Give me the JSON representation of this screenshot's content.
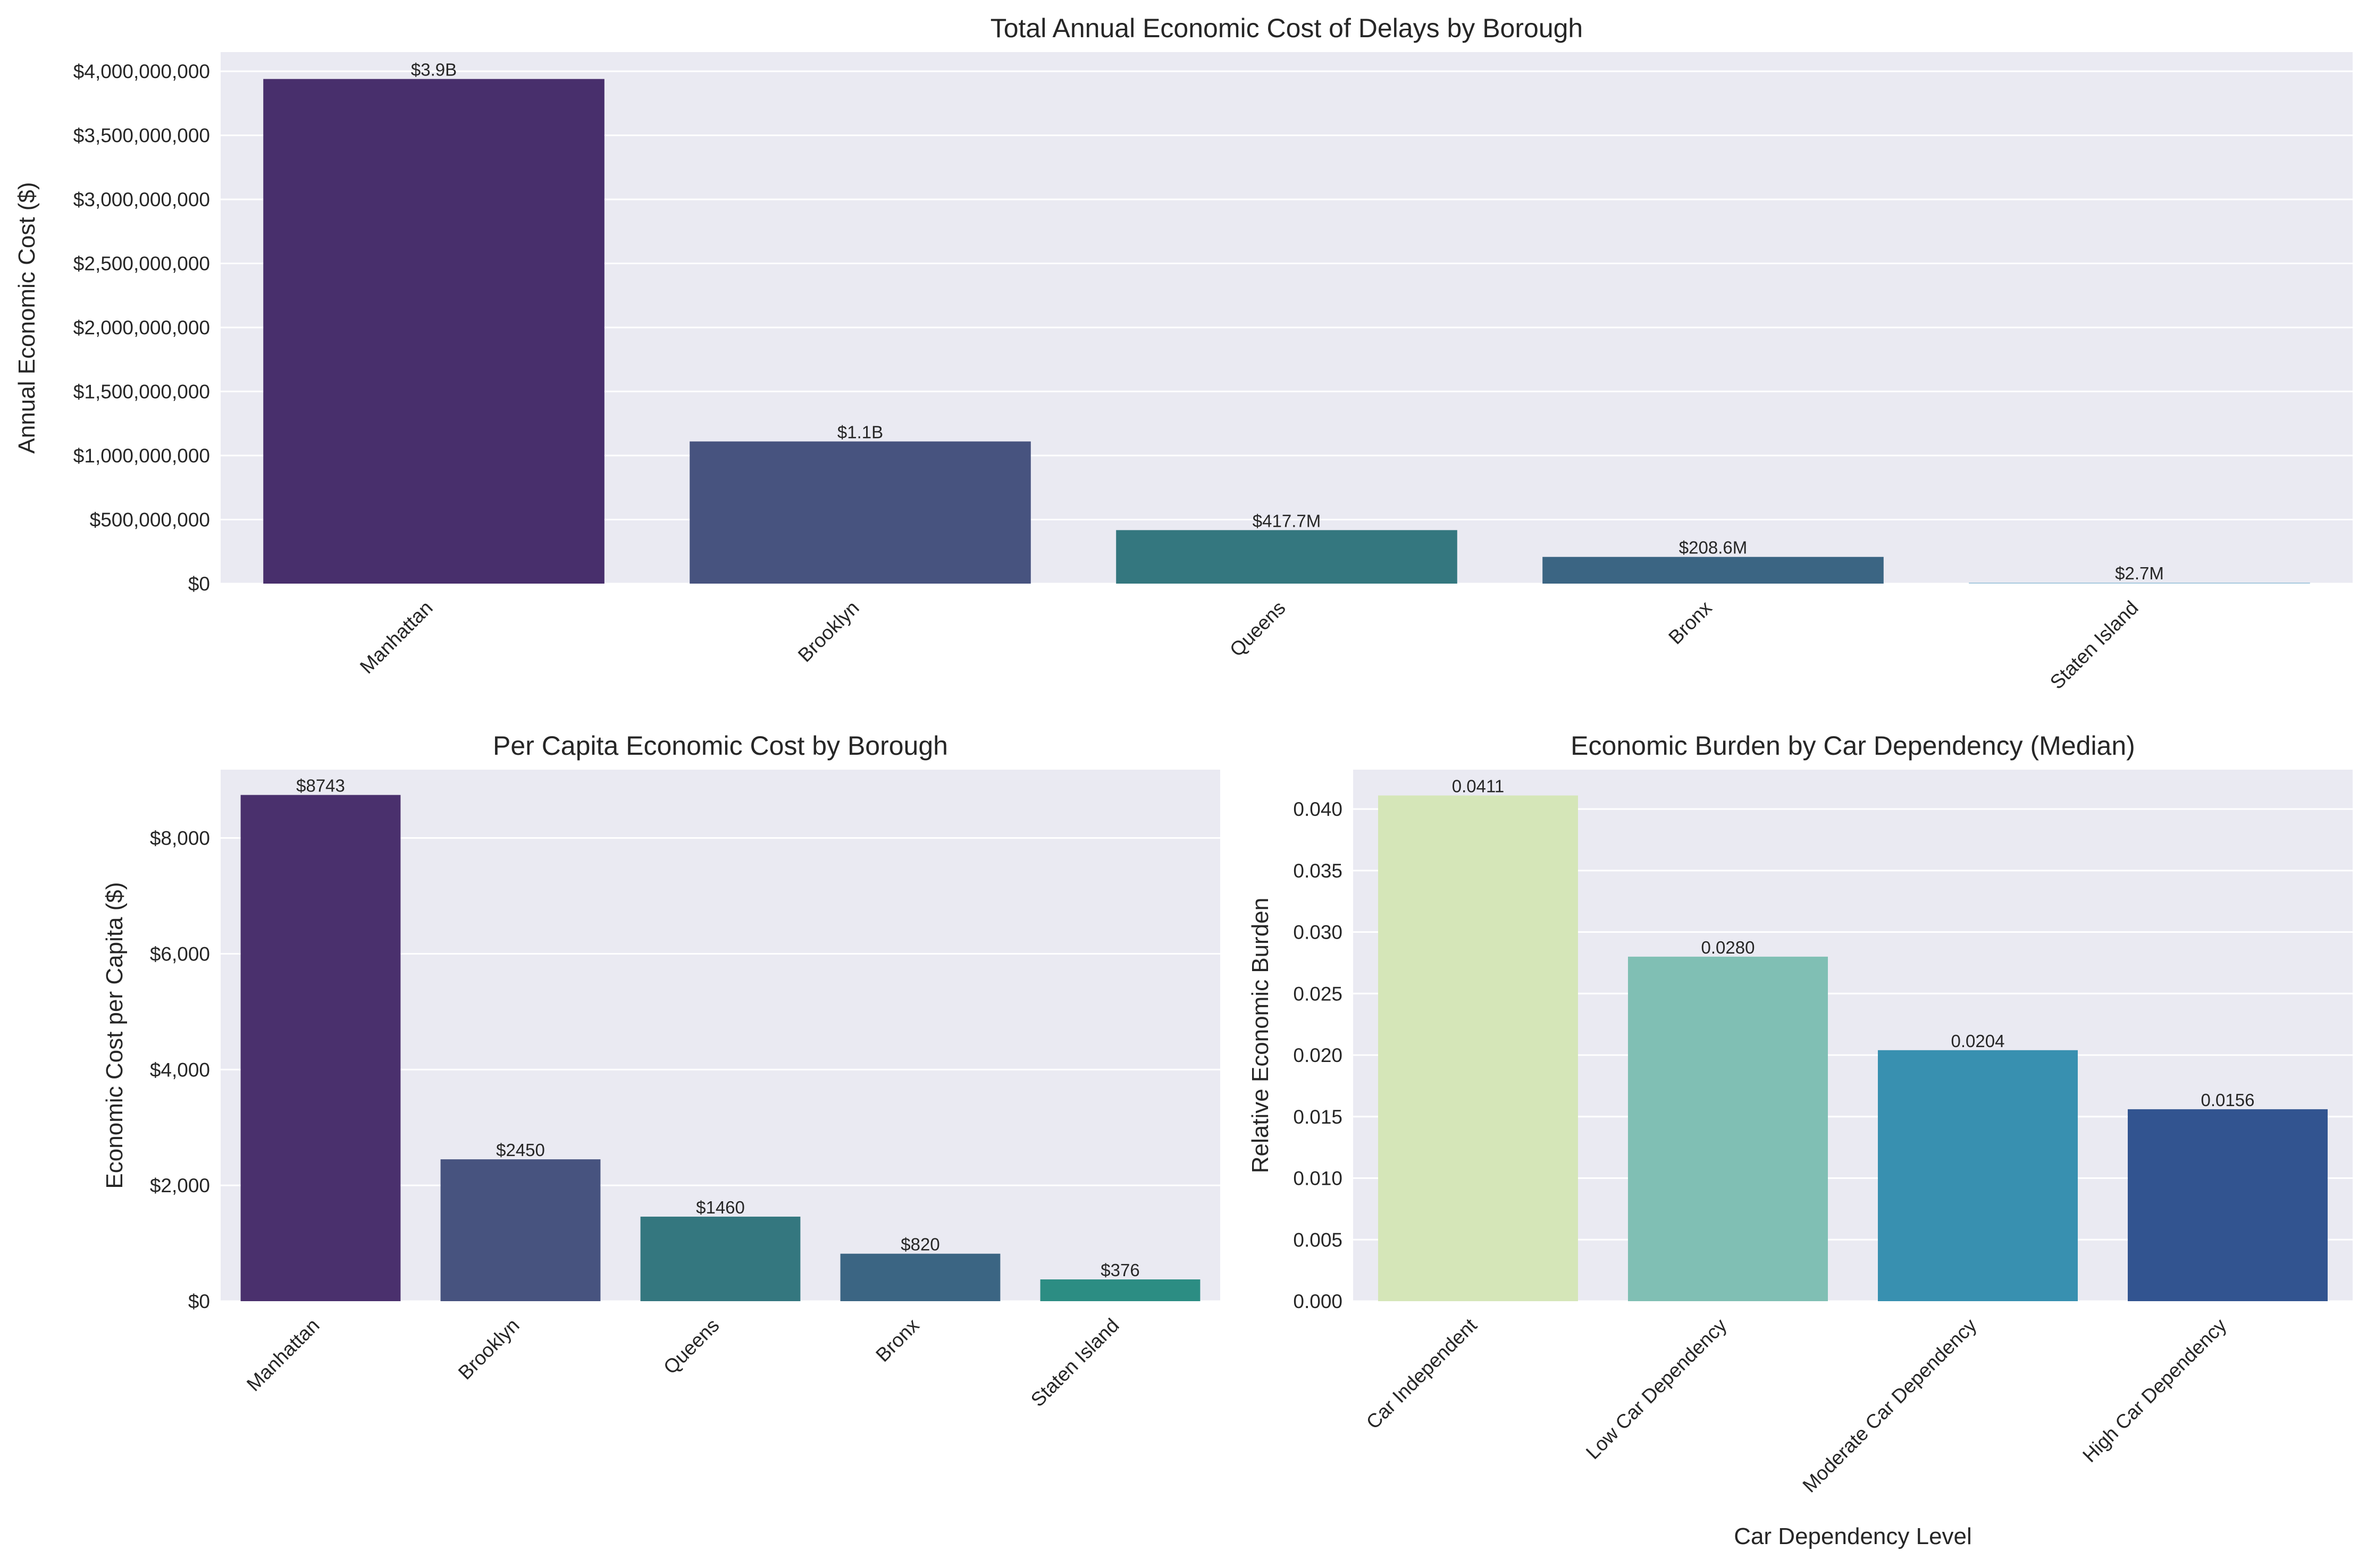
{
  "chart_data": [
    {
      "type": "bar",
      "title": "Total Annual Economic Cost of Delays by Borough",
      "xlabel": "",
      "ylabel": "Annual Economic Cost ($)",
      "categories": [
        "Manhattan",
        "Brooklyn",
        "Queens",
        "Bronx",
        "Staten Island"
      ],
      "values": [
        3940000000,
        1110000000,
        417700000,
        208600000,
        2700000
      ],
      "data_labels": [
        "$3.9B",
        "$1.1B",
        "$417.7M",
        "$208.6M",
        "$2.7M"
      ],
      "ylim": [
        0,
        4150000000
      ],
      "yticks": [
        0,
        500000000,
        1000000000,
        1500000000,
        2000000000,
        2500000000,
        3000000000,
        3500000000,
        4000000000
      ],
      "ytick_labels": [
        "$0",
        "$500,000,000",
        "$1,000,000,000",
        "$1,500,000,000",
        "$2,000,000,000",
        "$2,500,000,000",
        "$3,000,000,000",
        "$3,500,000,000",
        "$4,000,000,000"
      ],
      "colors": [
        "#482f6c",
        "#47537f",
        "#34777f",
        "#3b6583",
        "#a7c9de"
      ],
      "grid": true,
      "x_tick_rotation": 45
    },
    {
      "type": "bar",
      "title": "Per Capita Economic Cost by Borough",
      "xlabel": "",
      "ylabel": "Economic Cost per Capita ($)",
      "categories": [
        "Manhattan",
        "Brooklyn",
        "Queens",
        "Bronx",
        "Staten Island"
      ],
      "values": [
        8743,
        2450,
        1460,
        820,
        376
      ],
      "data_labels": [
        "$8743",
        "$2450",
        "$1460",
        "$820",
        "$376"
      ],
      "ylim": [
        0,
        9180
      ],
      "yticks": [
        0,
        2000,
        4000,
        6000,
        8000
      ],
      "ytick_labels": [
        "$0",
        "$2,000",
        "$4,000",
        "$6,000",
        "$8,000"
      ],
      "colors": [
        "#4a306d",
        "#47537f",
        "#34777f",
        "#3b6583",
        "#2c8d83"
      ],
      "grid": true,
      "x_tick_rotation": 45
    },
    {
      "type": "bar",
      "title": "Economic Burden by Car Dependency (Median)",
      "xlabel": "Car Dependency Level",
      "ylabel": "Relative Economic Burden",
      "categories": [
        "Car Independent",
        "Low Car Dependency",
        "Moderate Car Dependency",
        "High Car Dependency"
      ],
      "values": [
        0.0411,
        0.028,
        0.0204,
        0.0156
      ],
      "data_labels": [
        "0.0411",
        "0.0280",
        "0.0204",
        "0.0156"
      ],
      "ylim": [
        0,
        0.0432
      ],
      "yticks": [
        0,
        0.005,
        0.01,
        0.015,
        0.02,
        0.025,
        0.03,
        0.035,
        0.04
      ],
      "ytick_labels": [
        "0.000",
        "0.005",
        "0.010",
        "0.015",
        "0.020",
        "0.025",
        "0.030",
        "0.035",
        "0.040"
      ],
      "colors": [
        "#d5e6b8",
        "#80bfb4",
        "#3890b0",
        "#325490"
      ],
      "grid": true,
      "x_tick_rotation": 45
    }
  ]
}
